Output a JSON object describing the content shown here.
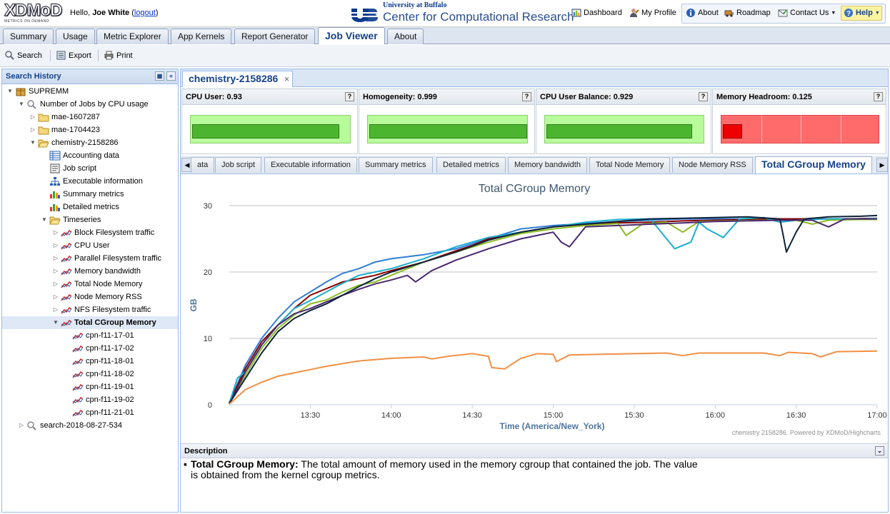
{
  "header": {
    "logo_text": "XDMoD",
    "logo_tagline": "METRICS ON DEMAND",
    "greeting": "Hello, ",
    "user_name": "Joe White",
    "logout_label": "logout",
    "institution_top": "University at Buffalo",
    "institution_main": "Center for Computational Research",
    "links": {
      "dashboard": "Dashboard",
      "my_profile": "My Profile",
      "about": "About",
      "roadmap": "Roadmap",
      "contact_us": "Contact Us",
      "help": "Help"
    }
  },
  "main_tabs": [
    "Summary",
    "Usage",
    "Metric Explorer",
    "App Kernels",
    "Report Generator",
    "Job Viewer",
    "About"
  ],
  "active_main_tab": "Job Viewer",
  "toolbar": {
    "search": "Search",
    "export": "Export",
    "print": "Print"
  },
  "search_history": {
    "title": "Search History",
    "nodes": [
      {
        "label": "SUPREMM"
      },
      {
        "label": "Number of Jobs by CPU usage"
      },
      {
        "label": "mae-1607287"
      },
      {
        "label": "mae-1704423"
      },
      {
        "label": "chemistry-2158286"
      },
      {
        "label": "Accounting data"
      },
      {
        "label": "Job script"
      },
      {
        "label": "Executable information"
      },
      {
        "label": "Summary metrics"
      },
      {
        "label": "Detailed metrics"
      },
      {
        "label": "Timeseries"
      },
      {
        "label": "Block Filesystem traffic"
      },
      {
        "label": "CPU User"
      },
      {
        "label": "Parallel Filesystem traffic"
      },
      {
        "label": "Memory bandwidth"
      },
      {
        "label": "Total Node Memory"
      },
      {
        "label": "Node Memory RSS"
      },
      {
        "label": "NFS Filesystem traffic"
      },
      {
        "label": "Total CGroup Memory"
      },
      {
        "label": "cpn-f11-17-01"
      },
      {
        "label": "cpn-f11-17-02"
      },
      {
        "label": "cpn-f11-18-01"
      },
      {
        "label": "cpn-f11-18-02"
      },
      {
        "label": "cpn-f11-19-01"
      },
      {
        "label": "cpn-f11-19-02"
      },
      {
        "label": "cpn-f11-21-01"
      },
      {
        "label": "search-2018-08-27-534"
      }
    ]
  },
  "job_tab": "chemistry-2158286",
  "metrics": [
    {
      "label": "CPU User: 0.93",
      "value": 0.93,
      "color": "#4cb52f"
    },
    {
      "label": "Homogeneity: 0.999",
      "value": 0.999,
      "color": "#4cb52f"
    },
    {
      "label": "CPU User Balance: 0.929",
      "value": 0.929,
      "color": "#4cb52f"
    },
    {
      "label": "Memory Headroom: 0.125",
      "value": 0.125,
      "color": "#ee0000"
    }
  ],
  "sub_tabs": [
    "ata",
    "Job script",
    "Executable information",
    "Summary metrics",
    "Detailed metrics",
    "Memory bandwidth",
    "Total Node Memory",
    "Node Memory RSS",
    "Total CGroup Memory"
  ],
  "active_sub_tab": "Total CGroup Memory",
  "chart_data": {
    "type": "line",
    "title": "Total CGroup Memory",
    "xlabel": "Time (America/New_York)",
    "ylabel": "GB",
    "credits": "chemistry 2158286. Powered by XDMoD/Highcharts",
    "x_ticks": [
      "13:30",
      "14:00",
      "14:30",
      "15:00",
      "15:30",
      "16:00",
      "16:30",
      "17:00"
    ],
    "x_tick_hours": [
      13.5,
      14.0,
      14.5,
      15.0,
      15.5,
      16.0,
      16.5,
      17.0
    ],
    "xlim": [
      13.0,
      17.0
    ],
    "ylim": [
      0,
      30
    ],
    "y_ticks": [
      0,
      10,
      20,
      30
    ],
    "grid": true,
    "series": [
      {
        "color": "#2f7ed8",
        "points": [
          [
            13.0,
            0.3
          ],
          [
            13.1,
            6
          ],
          [
            13.2,
            10
          ],
          [
            13.3,
            13
          ],
          [
            13.4,
            15.5
          ],
          [
            13.5,
            17
          ],
          [
            13.6,
            18.5
          ],
          [
            13.7,
            19.8
          ],
          [
            13.8,
            20.5
          ],
          [
            13.9,
            21.5
          ],
          [
            14.0,
            22
          ],
          [
            14.2,
            22.6
          ],
          [
            14.4,
            23.5
          ],
          [
            14.6,
            25
          ],
          [
            14.8,
            26.5
          ],
          [
            15.0,
            27
          ],
          [
            15.2,
            27.3
          ],
          [
            15.4,
            27.6
          ],
          [
            15.6,
            27.8
          ],
          [
            15.8,
            28
          ],
          [
            16.0,
            28
          ],
          [
            16.2,
            28
          ],
          [
            16.4,
            28
          ],
          [
            16.6,
            28
          ],
          [
            16.8,
            28
          ],
          [
            17.0,
            28
          ]
        ]
      },
      {
        "color": "#8b0000",
        "points": [
          [
            13.0,
            0.3
          ],
          [
            13.1,
            5.5
          ],
          [
            13.2,
            9.5
          ],
          [
            13.3,
            12
          ],
          [
            13.4,
            14.5
          ],
          [
            13.5,
            16.5
          ],
          [
            13.6,
            17.5
          ],
          [
            13.7,
            18.5
          ],
          [
            13.8,
            19
          ],
          [
            13.9,
            19.5
          ],
          [
            14.0,
            20.2
          ],
          [
            14.2,
            21.5
          ],
          [
            14.4,
            23.2
          ],
          [
            14.5,
            24
          ],
          [
            14.6,
            25
          ],
          [
            14.8,
            26
          ],
          [
            15.0,
            26.8
          ],
          [
            15.2,
            27.2
          ],
          [
            15.4,
            27.4
          ],
          [
            15.6,
            27.5
          ],
          [
            15.8,
            27.7
          ],
          [
            16.0,
            27.8
          ],
          [
            16.2,
            27.9
          ],
          [
            16.4,
            28
          ],
          [
            16.6,
            28
          ],
          [
            16.8,
            28
          ],
          [
            17.0,
            28.1
          ]
        ]
      },
      {
        "color": "#8bbc21",
        "points": [
          [
            13.0,
            0.2
          ],
          [
            13.1,
            4.5
          ],
          [
            13.2,
            8.5
          ],
          [
            13.3,
            11.5
          ],
          [
            13.4,
            13.5
          ],
          [
            13.5,
            15.2
          ],
          [
            13.6,
            15.8
          ],
          [
            13.7,
            17
          ],
          [
            13.8,
            18
          ],
          [
            13.9,
            18.5
          ],
          [
            14.0,
            19.5
          ],
          [
            14.2,
            21.5
          ],
          [
            14.4,
            23
          ],
          [
            14.6,
            24.5
          ],
          [
            14.8,
            25.8
          ],
          [
            15.0,
            26.5
          ],
          [
            15.2,
            27
          ],
          [
            15.4,
            27.3
          ],
          [
            15.45,
            25.5
          ],
          [
            15.55,
            27.2
          ],
          [
            15.7,
            27.5
          ],
          [
            15.8,
            26
          ],
          [
            15.9,
            27.6
          ],
          [
            16.1,
            27.7
          ],
          [
            16.3,
            27.8
          ],
          [
            16.5,
            27.8
          ],
          [
            16.6,
            27.2
          ],
          [
            16.7,
            27.8
          ],
          [
            16.9,
            27.9
          ],
          [
            17.0,
            27.9
          ]
        ]
      },
      {
        "color": "#1aadce",
        "points": [
          [
            13.0,
            0.2
          ],
          [
            13.05,
            4
          ],
          [
            13.1,
            5
          ],
          [
            13.2,
            9
          ],
          [
            13.3,
            12
          ],
          [
            13.4,
            14.5
          ],
          [
            13.5,
            15.7
          ],
          [
            13.6,
            17
          ],
          [
            13.7,
            18.3
          ],
          [
            13.8,
            19.5
          ],
          [
            13.9,
            20
          ],
          [
            14.0,
            20.5
          ],
          [
            14.2,
            22
          ],
          [
            14.4,
            23.8
          ],
          [
            14.6,
            25.2
          ],
          [
            14.8,
            26
          ],
          [
            15.0,
            26.8
          ],
          [
            15.2,
            27.5
          ],
          [
            15.4,
            27.9
          ],
          [
            15.6,
            28
          ],
          [
            15.7,
            25
          ],
          [
            15.75,
            23.5
          ],
          [
            15.85,
            24.5
          ],
          [
            15.9,
            27.5
          ],
          [
            15.95,
            26.5
          ],
          [
            16.05,
            25.2
          ],
          [
            16.15,
            28
          ],
          [
            16.3,
            28.2
          ],
          [
            16.4,
            27.5
          ],
          [
            16.5,
            27.8
          ],
          [
            16.7,
            28
          ],
          [
            16.9,
            28
          ],
          [
            17.0,
            28.1
          ]
        ]
      },
      {
        "color": "#492970",
        "points": [
          [
            13.0,
            0.1
          ],
          [
            13.1,
            5
          ],
          [
            13.2,
            9
          ],
          [
            13.3,
            12
          ],
          [
            13.4,
            13.7
          ],
          [
            13.5,
            14.5
          ],
          [
            13.6,
            15.5
          ],
          [
            13.7,
            16.5
          ],
          [
            13.8,
            17.4
          ],
          [
            13.9,
            18.2
          ],
          [
            14.0,
            18.8
          ],
          [
            14.1,
            19.5
          ],
          [
            14.15,
            18.5
          ],
          [
            14.25,
            20.2
          ],
          [
            14.4,
            21.8
          ],
          [
            14.6,
            23.5
          ],
          [
            14.8,
            25
          ],
          [
            15.0,
            26
          ],
          [
            15.05,
            24.5
          ],
          [
            15.1,
            23.8
          ],
          [
            15.2,
            26.8
          ],
          [
            15.4,
            27
          ],
          [
            15.6,
            27.2
          ],
          [
            15.8,
            27.4
          ],
          [
            16.0,
            27.6
          ],
          [
            16.2,
            27.7
          ],
          [
            16.4,
            27.8
          ],
          [
            16.6,
            27.8
          ],
          [
            16.7,
            26.8
          ],
          [
            16.8,
            28
          ],
          [
            17.0,
            28
          ]
        ]
      },
      {
        "color": "#0d233a",
        "points": [
          [
            13.0,
            0.2
          ],
          [
            13.1,
            4
          ],
          [
            13.2,
            7.8
          ],
          [
            13.3,
            11
          ],
          [
            13.4,
            13
          ],
          [
            13.5,
            14.2
          ],
          [
            13.6,
            15.2
          ],
          [
            13.7,
            16.5
          ],
          [
            13.8,
            17.8
          ],
          [
            13.9,
            19
          ],
          [
            14.0,
            20
          ],
          [
            14.2,
            21.5
          ],
          [
            14.4,
            23
          ],
          [
            14.6,
            24.8
          ],
          [
            14.8,
            26
          ],
          [
            15.0,
            26.8
          ],
          [
            15.2,
            27.2
          ],
          [
            15.4,
            27.6
          ],
          [
            15.6,
            28
          ],
          [
            15.8,
            28.1
          ],
          [
            16.0,
            28.2
          ],
          [
            16.2,
            28.3
          ],
          [
            16.4,
            28
          ],
          [
            16.42,
            25.5
          ],
          [
            16.44,
            23
          ],
          [
            16.5,
            26
          ],
          [
            16.55,
            28
          ],
          [
            16.7,
            28.3
          ],
          [
            16.9,
            28.4
          ],
          [
            17.0,
            28.5
          ]
        ]
      },
      {
        "color": "#f28f43",
        "points": [
          [
            13.0,
            0.1
          ],
          [
            13.1,
            2.3
          ],
          [
            13.2,
            3.4
          ],
          [
            13.3,
            4.3
          ],
          [
            13.4,
            4.8
          ],
          [
            13.5,
            5.3
          ],
          [
            13.6,
            5.8
          ],
          [
            13.7,
            6.2
          ],
          [
            13.8,
            6.6
          ],
          [
            13.9,
            6.8
          ],
          [
            14.0,
            7.0
          ],
          [
            14.1,
            7.1
          ],
          [
            14.2,
            7.2
          ],
          [
            14.25,
            6.9
          ],
          [
            14.35,
            7.3
          ],
          [
            14.5,
            7.7
          ],
          [
            14.6,
            7.3
          ],
          [
            14.62,
            5.6
          ],
          [
            14.7,
            5.4
          ],
          [
            14.8,
            7.0
          ],
          [
            14.9,
            7.7
          ],
          [
            15.0,
            7.6
          ],
          [
            15.02,
            6.5
          ],
          [
            15.1,
            7.5
          ],
          [
            15.3,
            7.6
          ],
          [
            15.5,
            7.7
          ],
          [
            15.7,
            7.8
          ],
          [
            15.8,
            7.4
          ],
          [
            15.9,
            7.8
          ],
          [
            16.1,
            7.8
          ],
          [
            16.3,
            7.8
          ],
          [
            16.4,
            7.4
          ],
          [
            16.45,
            7.9
          ],
          [
            16.6,
            7.7
          ],
          [
            16.65,
            7.2
          ],
          [
            16.75,
            8
          ],
          [
            17.0,
            8.1
          ]
        ]
      }
    ]
  },
  "description": {
    "title": "Description",
    "term": "Total CGroup Memory:",
    "text": " The total amount of memory used in the memory cgroup that contained the job. The value is obtained from the kernel cgroup metrics."
  }
}
